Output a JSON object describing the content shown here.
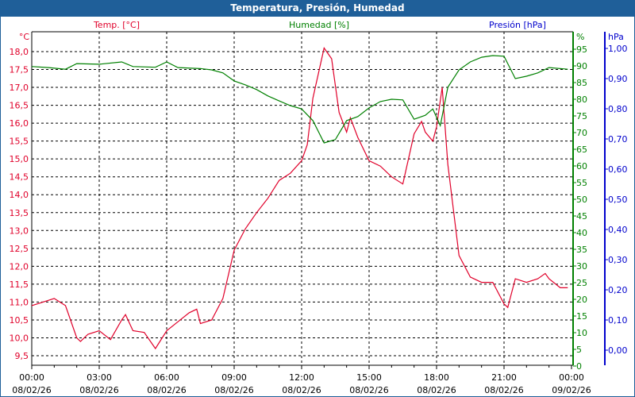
{
  "chart_data": {
    "type": "line",
    "title": "Temperatura, Presión, Humedad",
    "x_date_labels": [
      "08/02/26",
      "08/02/26",
      "08/02/26",
      "08/02/26",
      "08/02/26",
      "08/02/26",
      "08/02/26",
      "08/02/26",
      "09/02/26"
    ],
    "x_tick_labels": [
      "00:00",
      "03:00",
      "06:00",
      "09:00",
      "12:00",
      "15:00",
      "18:00",
      "21:00",
      "00:00"
    ],
    "xlim": [
      "08/02/26 00:00",
      "09/02/26 00:00"
    ],
    "grid": true,
    "axes": {
      "temp": {
        "label": "Temp. [°C]",
        "unit": "°C",
        "color": "#e0002a",
        "ylim": [
          9.2,
          18.55
        ],
        "ticks": [
          "18,0",
          "17,5",
          "17,0",
          "16,5",
          "16,0",
          "15,5",
          "15,0",
          "14,5",
          "14,0",
          "13,5",
          "13,0",
          "12,5",
          "12,0",
          "11,5",
          "11,0",
          "10,5",
          "10,0",
          "9,5"
        ]
      },
      "hum": {
        "label": "Humedad [%]",
        "unit": "%",
        "color": "#008000",
        "ylim": [
          0,
          100
        ],
        "ticks": [
          "95",
          "90",
          "85",
          "80",
          "75",
          "70",
          "65",
          "60",
          "55",
          "50",
          "45",
          "40",
          "35",
          "30",
          "25",
          "20",
          "15",
          "10",
          "5",
          "0"
        ]
      },
      "pres": {
        "label": "Presión [hPa]",
        "unit": "hPa",
        "color": "#0000cc",
        "ticks": [
          "1,00",
          "0,90",
          "0,80",
          "0,70",
          "0,60",
          "0,50",
          "0,40",
          "0,30",
          "0,20",
          "0,10",
          "0,00"
        ]
      }
    },
    "series": [
      {
        "name": "Temp. [°C]",
        "axis": "temp",
        "color": "#e0002a",
        "x": [
          "00:00",
          "00:30",
          "01:00",
          "01:30",
          "02:00",
          "02:10",
          "02:30",
          "03:00",
          "03:30",
          "04:00",
          "04:10",
          "04:30",
          "05:00",
          "05:30",
          "06:00",
          "06:30",
          "07:00",
          "07:20",
          "07:30",
          "08:00",
          "08:30",
          "09:00",
          "09:30",
          "10:00",
          "10:30",
          "11:00",
          "11:30",
          "12:00",
          "12:15",
          "12:30",
          "13:00",
          "13:20",
          "13:40",
          "14:00",
          "14:10",
          "14:30",
          "15:00",
          "15:30",
          "16:00",
          "16:30",
          "17:00",
          "17:20",
          "17:30",
          "17:50",
          "18:00",
          "18:15",
          "18:30",
          "19:00",
          "19:30",
          "20:00",
          "20:30",
          "21:00",
          "21:10",
          "21:30",
          "22:00",
          "22:30",
          "22:50",
          "23:00",
          "23:30",
          "23:50"
        ],
        "y": [
          10.9,
          11.0,
          11.1,
          10.9,
          10.0,
          9.9,
          10.1,
          10.2,
          9.95,
          10.5,
          10.65,
          10.2,
          10.15,
          9.7,
          10.2,
          10.45,
          10.7,
          10.8,
          10.4,
          10.5,
          11.1,
          12.45,
          13.05,
          13.5,
          13.9,
          14.4,
          14.6,
          14.95,
          15.4,
          16.7,
          18.1,
          17.8,
          16.3,
          15.75,
          16.15,
          15.6,
          14.95,
          14.8,
          14.5,
          14.3,
          15.7,
          16.05,
          15.75,
          15.5,
          15.9,
          17.0,
          14.85,
          12.3,
          11.7,
          11.55,
          11.55,
          10.95,
          10.85,
          11.65,
          11.55,
          11.65,
          11.8,
          11.65,
          11.4,
          11.4
        ]
      },
      {
        "name": "Humedad [%]",
        "axis": "hum",
        "color": "#008000",
        "x": [
          "00:00",
          "00:45",
          "01:30",
          "02:00",
          "03:00",
          "04:00",
          "04:30",
          "05:30",
          "06:00",
          "06:30",
          "07:30",
          "08:00",
          "08:30",
          "09:00",
          "09:30",
          "10:00",
          "10:30",
          "11:00",
          "11:30",
          "12:00",
          "12:30",
          "13:00",
          "13:30",
          "14:00",
          "14:30",
          "15:00",
          "15:30",
          "16:00",
          "16:30",
          "17:00",
          "17:30",
          "17:50",
          "18:10",
          "18:30",
          "19:00",
          "19:30",
          "20:00",
          "20:30",
          "21:00",
          "21:30",
          "22:00",
          "22:30",
          "23:00",
          "23:50"
        ],
        "y": [
          89.8,
          89.5,
          89.0,
          90.7,
          90.5,
          91.2,
          89.8,
          89.6,
          91.2,
          89.5,
          89.2,
          88.8,
          87.9,
          85.5,
          84.3,
          82.9,
          81.0,
          79.5,
          78.1,
          77.1,
          73.6,
          66.9,
          67.9,
          73.6,
          74.8,
          77.4,
          79.3,
          80.0,
          79.8,
          74.0,
          75.2,
          77.1,
          72.1,
          83.6,
          88.8,
          91.2,
          92.6,
          93.1,
          92.9,
          86.2,
          86.9,
          87.9,
          89.5,
          89.0
        ]
      },
      {
        "name": "Presión [hPa]",
        "axis": "pres",
        "color": "#0000cc",
        "x": [],
        "y": []
      }
    ]
  }
}
